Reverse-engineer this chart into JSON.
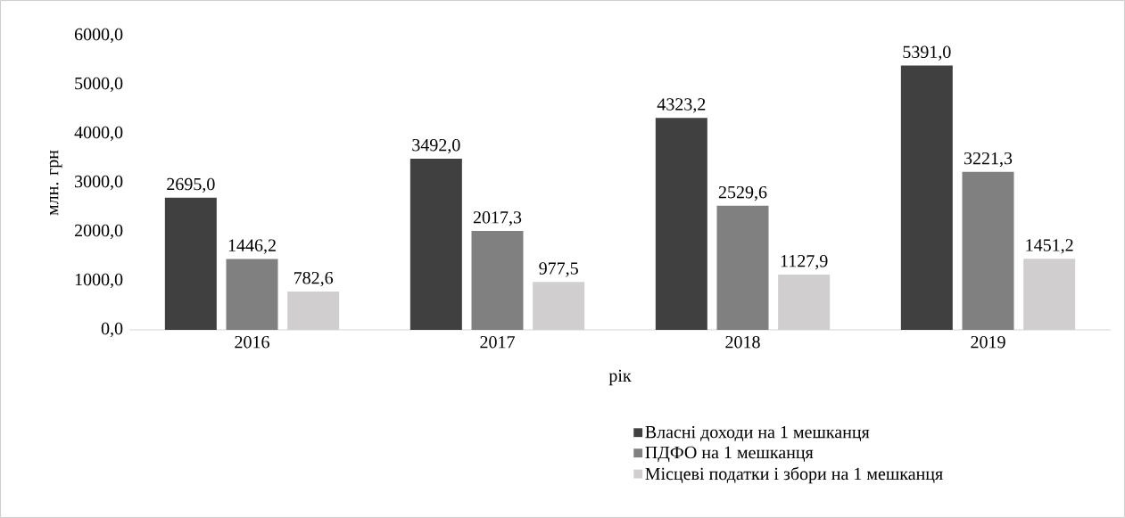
{
  "chart_data": {
    "type": "bar",
    "xlabel": "рік",
    "ylabel": "млн. грн",
    "categories": [
      "2016",
      "2017",
      "2018",
      "2019"
    ],
    "series": [
      {
        "name": "Власні доходи на 1 мешканця",
        "color": "#404040",
        "values": [
          2695.0,
          3492.0,
          4323.2,
          5391.0
        ],
        "value_labels": [
          "2695,0",
          "3492,0",
          "4323,2",
          "5391,0"
        ]
      },
      {
        "name": "ПДФО на 1 мешканця",
        "color": "#808080",
        "values": [
          1446.2,
          2017.3,
          2529.6,
          3221.3
        ],
        "value_labels": [
          "1446,2",
          "2017,3",
          "2529,6",
          "3221,3"
        ]
      },
      {
        "name": "Місцеві податки і збори на 1 мешканця",
        "color": "#d0cece",
        "values": [
          782.6,
          977.5,
          1127.9,
          1451.2
        ],
        "value_labels": [
          "782,6",
          "977,5",
          "1127,9",
          "1451,2"
        ]
      }
    ],
    "ylim": [
      0,
      6000
    ],
    "yticks": [
      {
        "value": 0,
        "label": "0,0"
      },
      {
        "value": 1000,
        "label": "1000,0"
      },
      {
        "value": 2000,
        "label": "2000,0"
      },
      {
        "value": 3000,
        "label": "3000,0"
      },
      {
        "value": 4000,
        "label": "4000,0"
      },
      {
        "value": 5000,
        "label": "5000,0"
      },
      {
        "value": 6000,
        "label": "6000,0"
      }
    ],
    "legend": "bottom right"
  }
}
